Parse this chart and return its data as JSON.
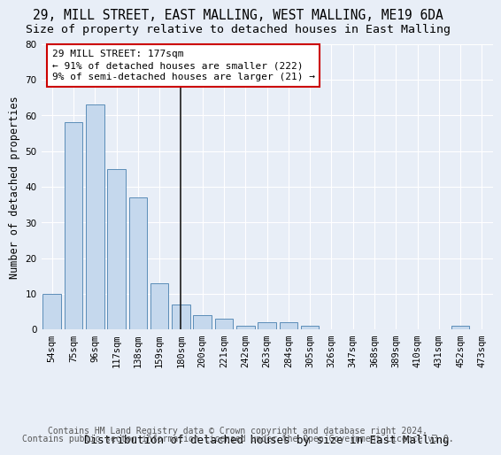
{
  "title1": "29, MILL STREET, EAST MALLING, WEST MALLING, ME19 6DA",
  "title2": "Size of property relative to detached houses in East Malling",
  "xlabel": "Distribution of detached houses by size in East Malling",
  "ylabel": "Number of detached properties",
  "categories": [
    "54sqm",
    "75sqm",
    "96sqm",
    "117sqm",
    "138sqm",
    "159sqm",
    "180sqm",
    "200sqm",
    "221sqm",
    "242sqm",
    "263sqm",
    "284sqm",
    "305sqm",
    "326sqm",
    "347sqm",
    "368sqm",
    "389sqm",
    "410sqm",
    "431sqm",
    "452sqm",
    "473sqm"
  ],
  "values": [
    10,
    58,
    63,
    45,
    37,
    13,
    7,
    4,
    3,
    1,
    2,
    2,
    1,
    0,
    0,
    0,
    0,
    0,
    0,
    1,
    0
  ],
  "bar_color": "#c5d8ed",
  "bar_edge_color": "#5b8db8",
  "vline_x_index": 6,
  "vline_color": "#1a1a1a",
  "annotation_line1": "29 MILL STREET: 177sqm",
  "annotation_line2": "← 91% of detached houses are smaller (222)",
  "annotation_line3": "9% of semi-detached houses are larger (21) →",
  "annotation_box_color": "#cc0000",
  "ylim": [
    0,
    80
  ],
  "yticks": [
    0,
    10,
    20,
    30,
    40,
    50,
    60,
    70,
    80
  ],
  "background_color": "#e8eef7",
  "plot_bg_color": "#e8eef7",
  "footer_line1": "Contains HM Land Registry data © Crown copyright and database right 2024.",
  "footer_line2": "Contains public sector information licensed under the Open Government Licence v3.0.",
  "title_fontsize": 10.5,
  "subtitle_fontsize": 9.5,
  "xlabel_fontsize": 9,
  "ylabel_fontsize": 8.5,
  "tick_fontsize": 7.5,
  "annotation_fontsize": 8,
  "footer_fontsize": 7
}
